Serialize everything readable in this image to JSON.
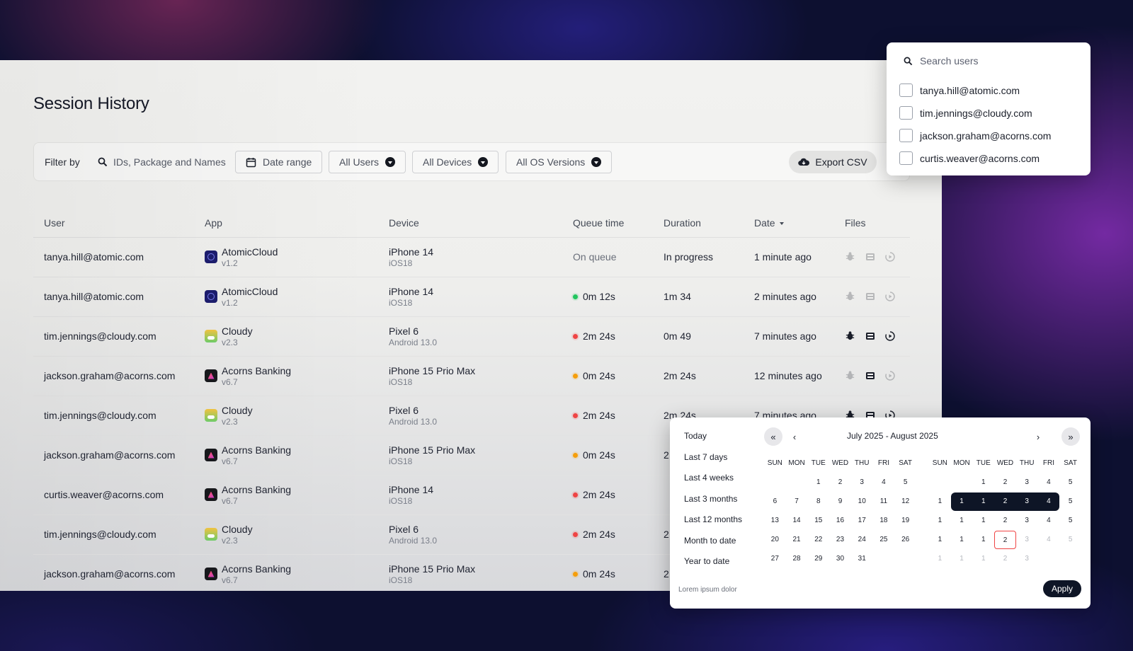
{
  "page": {
    "title": "Session History"
  },
  "filter": {
    "label": "Filter by",
    "search_placeholder": "IDs, Package and Names",
    "date_range": "Date range",
    "users": "All Users",
    "devices": "All Devices",
    "os_versions": "All OS Versions",
    "export": "Export CSV"
  },
  "table": {
    "headers": {
      "user": "User",
      "app": "App",
      "device": "Device",
      "queue": "Queue time",
      "duration": "Duration",
      "date": "Date",
      "files": "Files"
    },
    "rows": [
      {
        "user": "tanya.hill@atomic.com",
        "app": "AtomicCloud",
        "app_icon": "atomic",
        "version": "v1.2",
        "device": "iPhone 14",
        "os": "iOS18",
        "queue": "On queue",
        "queue_status": "none",
        "duration": "In progress",
        "date": "1 minute ago",
        "files": [
          false,
          false,
          false
        ]
      },
      {
        "user": "tanya.hill@atomic.com",
        "app": "AtomicCloud",
        "app_icon": "atomic",
        "version": "v1.2",
        "device": "iPhone 14",
        "os": "iOS18",
        "queue": "0m 12s",
        "queue_status": "green",
        "duration": "1m 34",
        "date": "2 minutes ago",
        "files": [
          false,
          false,
          false
        ]
      },
      {
        "user": "tim.jennings@cloudy.com",
        "app": "Cloudy",
        "app_icon": "cloudy",
        "version": "v2.3",
        "device": "Pixel 6",
        "os": "Android 13.0",
        "queue": "2m 24s",
        "queue_status": "red",
        "duration": "0m 49",
        "date": "7 minutes ago",
        "files": [
          true,
          true,
          true
        ]
      },
      {
        "user": "jackson.graham@acorns.com",
        "app": "Acorns Banking",
        "app_icon": "acorns",
        "version": "v6.7",
        "device": "iPhone 15 Prio Max",
        "os": "iOS18",
        "queue": "0m 24s",
        "queue_status": "orange",
        "duration": "2m 24s",
        "date": "12 minutes ago",
        "files": [
          false,
          true,
          false
        ]
      },
      {
        "user": "tim.jennings@cloudy.com",
        "app": "Cloudy",
        "app_icon": "cloudy",
        "version": "v2.3",
        "device": "Pixel 6",
        "os": "Android 13.0",
        "queue": "2m 24s",
        "queue_status": "red",
        "duration": "2m 24s",
        "date": "7 minutes ago",
        "files": [
          true,
          true,
          true
        ]
      },
      {
        "user": "jackson.graham@acorns.com",
        "app": "Acorns Banking",
        "app_icon": "acorns",
        "version": "v6.7",
        "device": "iPhone 15 Prio Max",
        "os": "iOS18",
        "queue": "0m 24s",
        "queue_status": "orange",
        "duration": "2",
        "date": "",
        "files": []
      },
      {
        "user": "curtis.weaver@acorns.com",
        "app": "Acorns Banking",
        "app_icon": "acorns",
        "version": "v6.7",
        "device": "iPhone 14",
        "os": "iOS18",
        "queue": "2m 24s",
        "queue_status": "red",
        "duration": "",
        "date": "",
        "files": []
      },
      {
        "user": "tim.jennings@cloudy.com",
        "app": "Cloudy",
        "app_icon": "cloudy",
        "version": "v2.3",
        "device": "Pixel 6",
        "os": "Android 13.0",
        "queue": "2m 24s",
        "queue_status": "red",
        "duration": "2",
        "date": "",
        "files": []
      },
      {
        "user": "jackson.graham@acorns.com",
        "app": "Acorns Banking",
        "app_icon": "acorns",
        "version": "v6.7",
        "device": "iPhone 15 Prio Max",
        "os": "iOS18",
        "queue": "0m 24s",
        "queue_status": "orange",
        "duration": "2",
        "date": "",
        "files": []
      }
    ]
  },
  "user_dropdown": {
    "search_placeholder": "Search users",
    "options": [
      "tanya.hill@atomic.com",
      "tim.jennings@cloudy.com",
      "jackson.graham@acorns.com",
      "curtis.weaver@acorns.com"
    ]
  },
  "date_picker": {
    "presets": [
      "Today",
      "Last 7 days",
      "Last 4 weeks",
      "Last 3 months",
      "Last 12 months",
      "Month to date",
      "Year to date"
    ],
    "title": "July 2025 - August 2025",
    "weekdays": [
      "SUN",
      "MON",
      "TUE",
      "WED",
      "THU",
      "FRI",
      "SAT"
    ],
    "left_weeks": [
      [
        "",
        "",
        "1",
        "2",
        "3",
        "4",
        "5"
      ],
      [
        "6",
        "7",
        "8",
        "9",
        "10",
        "11",
        "12"
      ],
      [
        "13",
        "14",
        "15",
        "16",
        "17",
        "18",
        "19"
      ],
      [
        "20",
        "21",
        "22",
        "23",
        "24",
        "25",
        "26"
      ],
      [
        "27",
        "28",
        "29",
        "30",
        "31",
        "",
        ""
      ]
    ],
    "right_weeks": [
      [
        "",
        "",
        "1",
        "2",
        "3",
        "4",
        "5"
      ],
      [
        "1",
        "1",
        "1",
        "2",
        "3",
        "4",
        "5"
      ],
      [
        "1",
        "1",
        "1",
        "2",
        "3",
        "4",
        "5"
      ],
      [
        "1",
        "1",
        "1",
        "2",
        "3",
        "4",
        "5"
      ],
      [
        "1",
        "1",
        "1",
        "2",
        "3",
        "",
        ""
      ]
    ],
    "footer": "Lorem ipsum dolor",
    "apply": "Apply"
  }
}
